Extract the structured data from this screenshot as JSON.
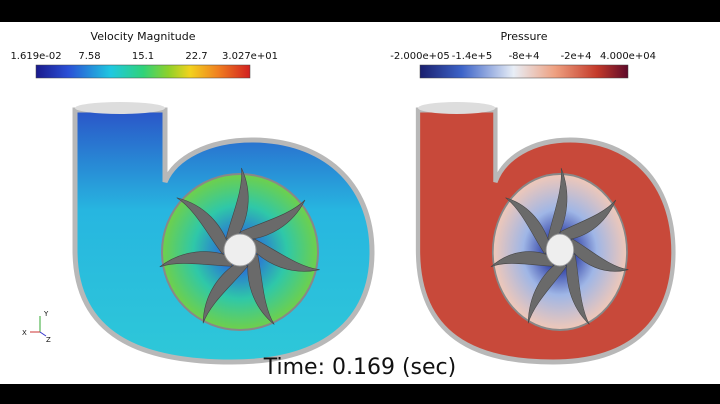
{
  "colorbars": [
    {
      "title": "Velocity Magnitude",
      "ticks": [
        "1.619e-02",
        "7.58",
        "15.1",
        "22.7",
        "3.027e+01"
      ]
    },
    {
      "title": "Pressure",
      "ticks": [
        "-2.000e+05",
        "-1.4e+5",
        "-8e+4",
        "-2e+4",
        "4.000e+04"
      ]
    }
  ],
  "time_label": "Time: 0.169 (sec)",
  "axes": {
    "labels": [
      "Y",
      "X",
      "Z"
    ]
  }
}
